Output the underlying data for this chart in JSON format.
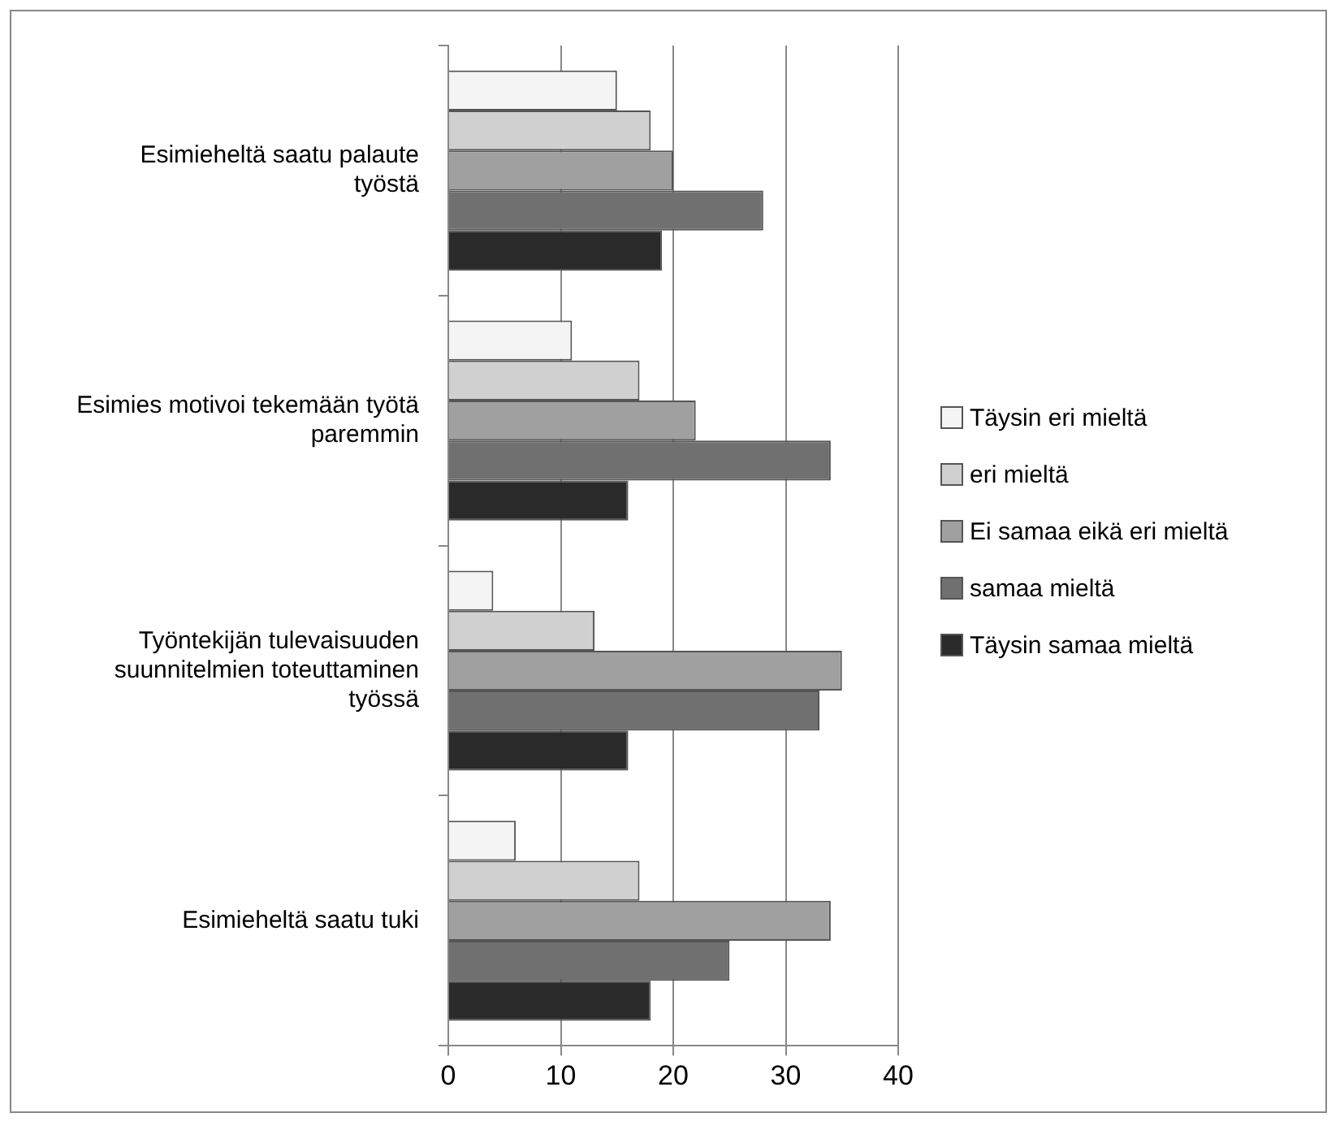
{
  "chart_data": {
    "type": "bar",
    "orientation": "horizontal",
    "categories": [
      "Esimieheltä saatu palaute työstä",
      "Esimies motivoi tekemään työtä paremmin",
      "Työntekijän tulevaisuuden suunnitelmien toteuttaminen työssä",
      "Esimieheltä saatu tuki"
    ],
    "series": [
      {
        "name": "Täysin eri mieltä",
        "color": "#f4f4f4",
        "values": [
          15,
          11,
          4,
          6
        ]
      },
      {
        "name": "eri mieltä",
        "color": "#d0d0d0",
        "values": [
          18,
          17,
          13,
          17
        ]
      },
      {
        "name": "Ei samaa eikä eri mieltä",
        "color": "#a0a0a0",
        "values": [
          20,
          22,
          35,
          34
        ]
      },
      {
        "name": "samaa mieltä",
        "color": "#707070",
        "values": [
          28,
          34,
          33,
          25
        ]
      },
      {
        "name": "Täysin samaa mieltä",
        "color": "#2a2a2a",
        "values": [
          19,
          16,
          16,
          18
        ]
      }
    ],
    "xlim": [
      0,
      40
    ],
    "xticks": [
      0,
      10,
      20,
      30,
      40
    ],
    "grid": "x",
    "legend": "right"
  }
}
